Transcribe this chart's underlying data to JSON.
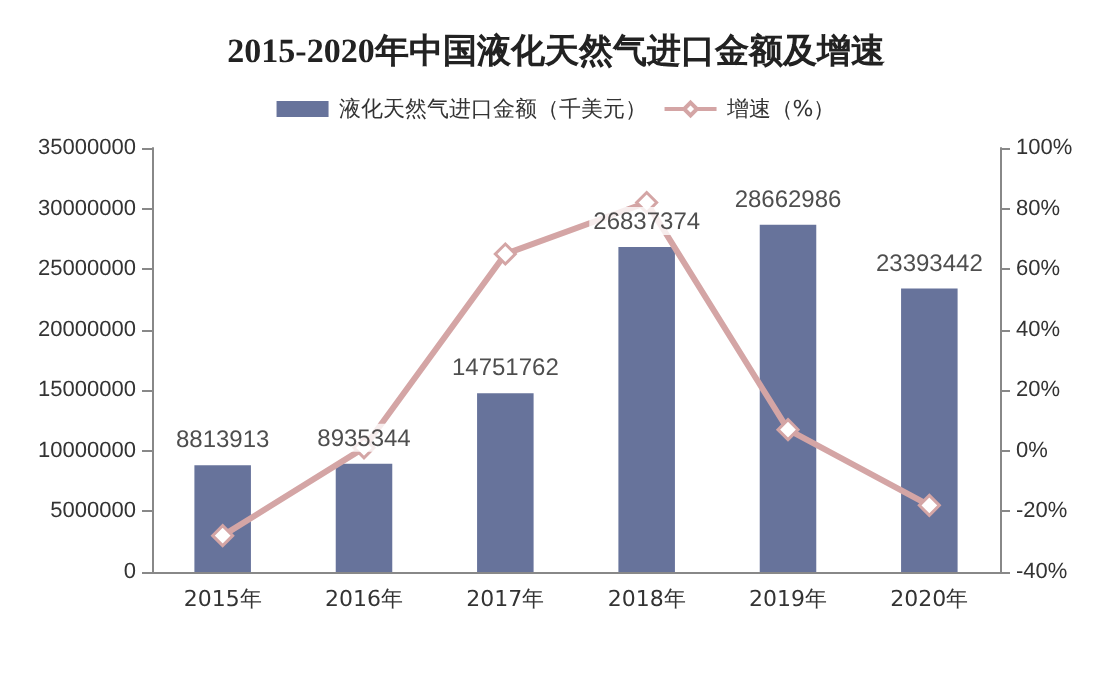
{
  "chart_data": {
    "type": "bar",
    "title": "2015-2020年中国液化天然气进口金额及增速",
    "categories": [
      "2015年",
      "2016年",
      "2017年",
      "2018年",
      "2019年",
      "2020年"
    ],
    "series": [
      {
        "name": "液化天然气进口金额（千美元）",
        "color": "#67739b",
        "values": [
          8813913,
          8935344,
          14751762,
          26837374,
          28662986,
          23393442
        ]
      },
      {
        "name": "增速（%）",
        "type": "line",
        "axis": "y2",
        "color": "#d4a5a5",
        "marker": "diamond",
        "values": [
          -28,
          1,
          65,
          82,
          7,
          -18
        ]
      }
    ],
    "ylim": [
      0,
      35000000
    ],
    "yticks": [
      0,
      5000000,
      10000000,
      15000000,
      20000000,
      25000000,
      30000000,
      35000000
    ],
    "y2lim": [
      -40,
      100
    ],
    "y2ticks": [
      {
        "value": -40,
        "label": "-40%"
      },
      {
        "value": -20,
        "label": "-20%"
      },
      {
        "value": 0,
        "label": "0%"
      },
      {
        "value": 20,
        "label": "20%"
      },
      {
        "value": 40,
        "label": "40%"
      },
      {
        "value": 60,
        "label": "60%"
      },
      {
        "value": 80,
        "label": "80%"
      },
      {
        "value": 100,
        "label": "100%"
      }
    ],
    "legend": "top",
    "grid": false,
    "value_labels": [
      "8813913",
      "8935344",
      "14751762",
      "26837374",
      "28662986",
      "23393442"
    ]
  }
}
